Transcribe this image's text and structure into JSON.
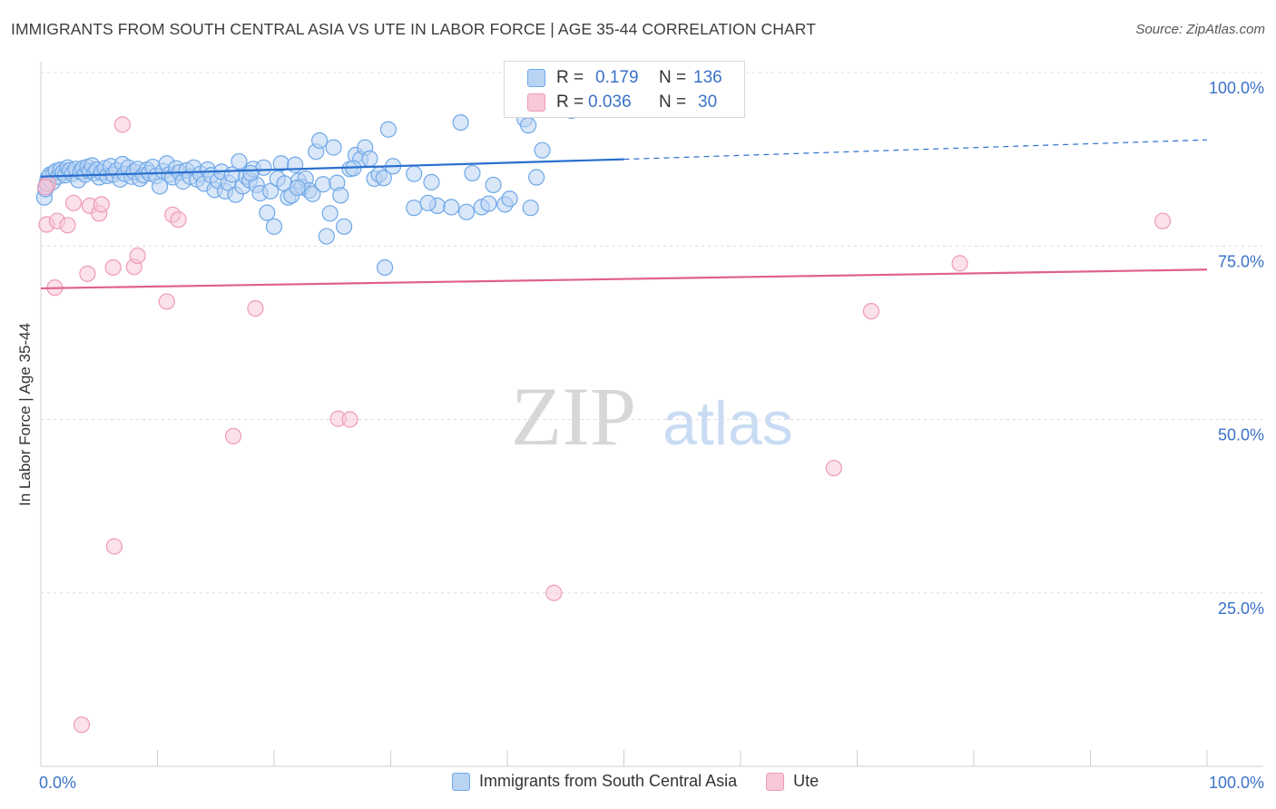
{
  "title": "IMMIGRANTS FROM SOUTH CENTRAL ASIA VS UTE IN LABOR FORCE | AGE 35-44 CORRELATION CHART",
  "source": "Source: ZipAtlas.com",
  "watermark": {
    "zip": "ZIP",
    "atlas": "atlas"
  },
  "stats": [
    {
      "r_label": "R =",
      "r_value": "0.179",
      "n_label": "N =",
      "n_value": "136",
      "color": "#6fa8e8",
      "fill": "#b9d3f3"
    },
    {
      "r_label": "R =",
      "r_value": "0.036",
      "n_label": "N =",
      "n_value": "30",
      "color": "#ee9ab6",
      "fill": "#f8c8d8"
    }
  ],
  "legend": [
    {
      "label": "Immigrants from South Central Asia",
      "color": "#6fa8e8",
      "fill": "#b9d3f3"
    },
    {
      "label": "Ute",
      "color": "#ee9ab6",
      "fill": "#f8c8d8"
    }
  ],
  "chart_data": {
    "type": "scatter",
    "title": "IMMIGRANTS FROM SOUTH CENTRAL ASIA VS UTE IN LABOR FORCE | AGE 35-44 CORRELATION CHART",
    "xlabel": "",
    "ylabel": "In Labor Force | Age 35-44",
    "xlim": [
      0,
      100
    ],
    "ylim": [
      0,
      100
    ],
    "x_tick_labels": [
      "0.0%",
      "100.0%"
    ],
    "y_tick_values": [
      25,
      50,
      75,
      100
    ],
    "y_tick_labels": [
      "25.0%",
      "50.0%",
      "75.0%",
      "100.0%"
    ],
    "grid": "horizontal dashed",
    "legend_position": "bottom",
    "series": [
      {
        "name": "Immigrants from South Central Asia",
        "color": "#6fa8e8",
        "fill": "#b9d3f3",
        "trend": {
          "x": [
            0,
            50
          ],
          "y": [
            85.0,
            87.5
          ],
          "dashed_extension_to_x": 100,
          "dashed_end_y": 90.3,
          "color": "#2a6fce"
        },
        "points": [
          [
            0.3,
            82.0
          ],
          [
            0.4,
            83.2
          ],
          [
            0.5,
            84.0
          ],
          [
            0.6,
            84.8
          ],
          [
            0.8,
            85.3
          ],
          [
            1.0,
            84.2
          ],
          [
            1.1,
            85.5
          ],
          [
            1.3,
            85.8
          ],
          [
            1.5,
            85.0
          ],
          [
            1.7,
            86.0
          ],
          [
            1.9,
            85.6
          ],
          [
            2.1,
            85.2
          ],
          [
            2.3,
            86.3
          ],
          [
            2.5,
            85.9
          ],
          [
            2.7,
            85.4
          ],
          [
            3.0,
            86.1
          ],
          [
            3.2,
            84.5
          ],
          [
            3.4,
            85.7
          ],
          [
            3.6,
            86.2
          ],
          [
            3.8,
            85.3
          ],
          [
            4.0,
            86.4
          ],
          [
            4.2,
            85.8
          ],
          [
            4.4,
            86.6
          ],
          [
            4.6,
            85.5
          ],
          [
            4.8,
            86.0
          ],
          [
            5.0,
            84.9
          ],
          [
            5.2,
            85.6
          ],
          [
            5.5,
            86.2
          ],
          [
            5.7,
            85.1
          ],
          [
            6.0,
            86.5
          ],
          [
            6.2,
            85.3
          ],
          [
            6.5,
            85.9
          ],
          [
            6.8,
            84.6
          ],
          [
            7.0,
            86.8
          ],
          [
            7.2,
            85.4
          ],
          [
            7.5,
            86.3
          ],
          [
            7.8,
            85.0
          ],
          [
            8.0,
            85.7
          ],
          [
            8.3,
            86.1
          ],
          [
            8.5,
            84.7
          ],
          [
            8.8,
            85.2
          ],
          [
            9.1,
            86.0
          ],
          [
            9.3,
            85.5
          ],
          [
            9.6,
            86.4
          ],
          [
            9.9,
            85.1
          ],
          [
            10.2,
            83.6
          ],
          [
            10.5,
            85.8
          ],
          [
            10.8,
            86.9
          ],
          [
            11.0,
            85.3
          ],
          [
            11.3,
            84.9
          ],
          [
            11.6,
            86.2
          ],
          [
            11.9,
            85.6
          ],
          [
            12.2,
            84.3
          ],
          [
            12.5,
            85.9
          ],
          [
            12.8,
            85.0
          ],
          [
            13.1,
            86.3
          ],
          [
            13.4,
            84.6
          ],
          [
            13.7,
            85.4
          ],
          [
            14.0,
            84.0
          ],
          [
            14.3,
            86.0
          ],
          [
            14.6,
            85.2
          ],
          [
            14.9,
            83.1
          ],
          [
            15.2,
            84.4
          ],
          [
            15.5,
            85.7
          ],
          [
            15.8,
            82.9
          ],
          [
            16.1,
            84.1
          ],
          [
            16.4,
            85.3
          ],
          [
            16.7,
            82.4
          ],
          [
            17.0,
            87.2
          ],
          [
            17.3,
            83.6
          ],
          [
            17.6,
            85.0
          ],
          [
            17.9,
            84.5
          ],
          [
            18.2,
            86.1
          ],
          [
            18.5,
            83.8
          ],
          [
            18.8,
            82.6
          ],
          [
            19.1,
            86.3
          ],
          [
            19.4,
            79.8
          ],
          [
            19.7,
            82.9
          ],
          [
            20.0,
            77.8
          ],
          [
            20.3,
            84.7
          ],
          [
            20.6,
            86.9
          ],
          [
            20.9,
            84.0
          ],
          [
            21.2,
            82.0
          ],
          [
            21.5,
            82.3
          ],
          [
            21.8,
            86.7
          ],
          [
            22.1,
            84.4
          ],
          [
            22.4,
            83.5
          ],
          [
            22.7,
            84.7
          ],
          [
            23.0,
            83.0
          ],
          [
            23.3,
            82.5
          ],
          [
            23.6,
            88.6
          ],
          [
            23.9,
            90.2
          ],
          [
            24.2,
            83.9
          ],
          [
            24.5,
            76.4
          ],
          [
            24.8,
            79.7
          ],
          [
            25.1,
            89.2
          ],
          [
            25.4,
            84.1
          ],
          [
            25.7,
            82.3
          ],
          [
            26.0,
            77.8
          ],
          [
            26.5,
            86.1
          ],
          [
            27.0,
            88.1
          ],
          [
            27.4,
            87.5
          ],
          [
            27.8,
            89.2
          ],
          [
            28.2,
            87.6
          ],
          [
            28.6,
            84.7
          ],
          [
            29.0,
            85.3
          ],
          [
            29.4,
            84.8
          ],
          [
            29.8,
            91.8
          ],
          [
            30.2,
            86.5
          ],
          [
            32.0,
            85.4
          ],
          [
            33.5,
            84.2
          ],
          [
            34.0,
            80.8
          ],
          [
            35.2,
            80.6
          ],
          [
            36.0,
            92.8
          ],
          [
            37.0,
            85.5
          ],
          [
            37.8,
            80.6
          ],
          [
            38.4,
            81.1
          ],
          [
            38.8,
            83.8
          ],
          [
            39.8,
            81.0
          ],
          [
            40.2,
            81.8
          ],
          [
            41.5,
            93.3
          ],
          [
            41.8,
            92.4
          ],
          [
            42.0,
            80.5
          ],
          [
            42.5,
            84.9
          ],
          [
            43.0,
            88.8
          ],
          [
            45.5,
            94.5
          ],
          [
            47.0,
            97.3
          ],
          [
            47.4,
            100.0
          ],
          [
            41.0,
            100.0
          ],
          [
            29.5,
            71.9
          ],
          [
            32.0,
            80.5
          ],
          [
            33.2,
            81.2
          ],
          [
            36.5,
            79.9
          ],
          [
            26.8,
            86.2
          ],
          [
            22.0,
            83.4
          ],
          [
            18.0,
            85.5
          ]
        ]
      },
      {
        "name": "Ute",
        "color": "#ee9ab6",
        "fill": "#f8c8d8",
        "trend": {
          "x": [
            0,
            100
          ],
          "y": [
            68.9,
            71.6
          ],
          "color": "#e0608b"
        },
        "points": [
          [
            0.5,
            78.1
          ],
          [
            1.2,
            69.0
          ],
          [
            1.4,
            78.6
          ],
          [
            2.3,
            78.0
          ],
          [
            2.8,
            81.2
          ],
          [
            4.0,
            71.0
          ],
          [
            4.2,
            80.8
          ],
          [
            5.0,
            79.7
          ],
          [
            5.2,
            81.0
          ],
          [
            6.2,
            71.9
          ],
          [
            7.0,
            92.5
          ],
          [
            8.0,
            72.0
          ],
          [
            8.3,
            73.6
          ],
          [
            10.8,
            67.0
          ],
          [
            11.3,
            79.5
          ],
          [
            11.8,
            78.8
          ],
          [
            16.5,
            47.6
          ],
          [
            18.4,
            66.0
          ],
          [
            25.5,
            50.1
          ],
          [
            26.5,
            50.0
          ],
          [
            44.0,
            25.0
          ],
          [
            53.8,
            100.0
          ],
          [
            68.0,
            43.0
          ],
          [
            71.2,
            65.6
          ],
          [
            78.8,
            72.5
          ],
          [
            96.2,
            78.6
          ],
          [
            6.3,
            31.7
          ],
          [
            3.5,
            6.0
          ],
          [
            0.6,
            84.0
          ],
          [
            0.4,
            83.5
          ]
        ]
      }
    ]
  }
}
